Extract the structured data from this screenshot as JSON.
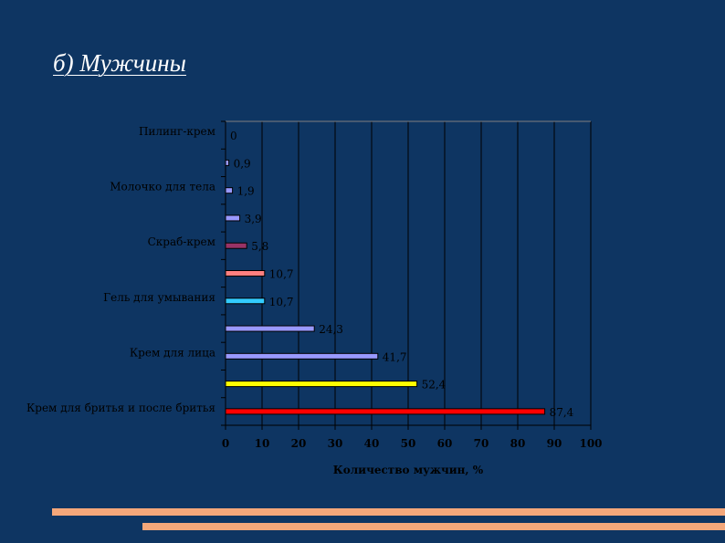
{
  "slide": {
    "title": "б) Мужчины"
  },
  "colors": {
    "background": "#0e3562",
    "stripe": "#f4a77a",
    "text": "#000000"
  },
  "chart_data": {
    "type": "bar",
    "orientation": "horizontal",
    "title": "б) Мужчины",
    "xlabel": "Количество мужчин, %",
    "ylabel": "",
    "xlim": [
      0,
      100
    ],
    "xticks": [
      0,
      10,
      20,
      30,
      40,
      50,
      60,
      70,
      80,
      90,
      100
    ],
    "grid": true,
    "categories": [
      "Крем для бритья и после бритья",
      "",
      "Крем для лица",
      "",
      "Гель для умывания",
      "",
      "Скраб-крем",
      "",
      "Молочко для тела",
      "",
      "Пилинг-крем"
    ],
    "values": [
      87.4,
      52.4,
      41.7,
      24.3,
      10.7,
      10.7,
      5.8,
      3.9,
      1.9,
      0.9,
      0
    ],
    "value_labels": [
      "87,4",
      "52,4",
      "41,7",
      "24,3",
      "10,7",
      "10,7",
      "5,8",
      "3,9",
      "1,9",
      "0,9",
      "0"
    ],
    "bar_colors": [
      "#ff0000",
      "#ffff00",
      "#9999ff",
      "#9999ff",
      "#33ccff",
      "#ff8080",
      "#993366",
      "#9999ff",
      "#9999ff",
      "#9999ff",
      "#9999ff"
    ]
  }
}
